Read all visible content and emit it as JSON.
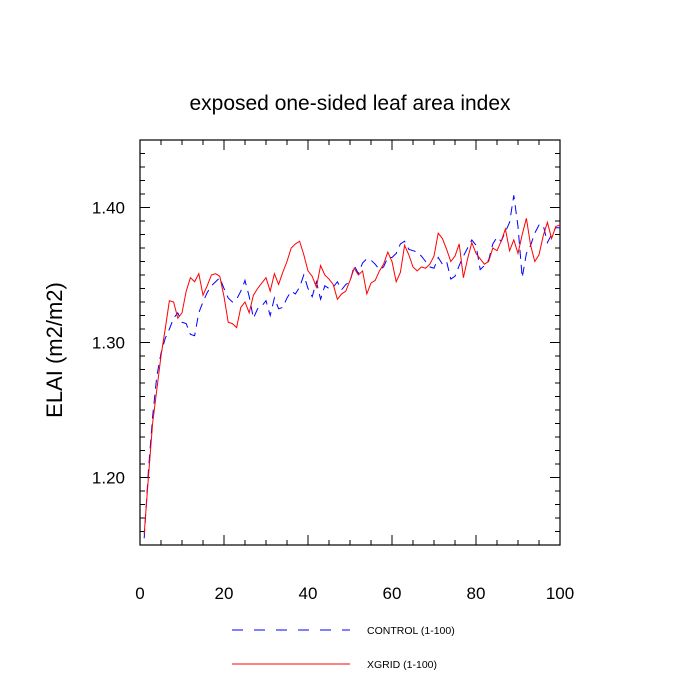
{
  "chart_data": {
    "type": "line",
    "title": "exposed one-sided leaf area index",
    "xlabel": "",
    "ylabel": "ELAI  (m2/m2)",
    "xlim": [
      0,
      100
    ],
    "ylim": [
      1.15,
      1.45
    ],
    "xticks": [
      0,
      20,
      40,
      60,
      80,
      100
    ],
    "xtick_labels": [
      "0",
      "20",
      "40",
      "60",
      "80",
      "100"
    ],
    "yticks": [
      1.2,
      1.3,
      1.4
    ],
    "ytick_labels": [
      "1.20",
      "1.30",
      "1.40"
    ],
    "x": [
      1,
      2,
      3,
      4,
      5,
      6,
      7,
      8,
      9,
      10,
      11,
      12,
      13,
      14,
      15,
      16,
      17,
      18,
      19,
      20,
      21,
      22,
      23,
      24,
      25,
      26,
      27,
      28,
      29,
      30,
      31,
      32,
      33,
      34,
      35,
      36,
      37,
      38,
      39,
      40,
      41,
      42,
      43,
      44,
      45,
      46,
      47,
      48,
      49,
      50,
      51,
      52,
      53,
      54,
      55,
      56,
      57,
      58,
      59,
      60,
      61,
      62,
      63,
      64,
      65,
      66,
      67,
      68,
      69,
      70,
      71,
      72,
      73,
      74,
      75,
      76,
      77,
      78,
      79,
      80,
      81,
      82,
      83,
      84,
      85,
      86,
      87,
      88,
      89,
      90,
      91,
      92,
      93,
      94,
      95,
      96,
      97,
      98,
      99,
      100
    ],
    "series": [
      {
        "name": "CONTROL (1-100)",
        "color": "#0000ff",
        "dash": "dashed",
        "values": [
          1.155,
          1.205,
          1.245,
          1.275,
          1.292,
          1.303,
          1.31,
          1.318,
          1.322,
          1.315,
          1.314,
          1.306,
          1.305,
          1.322,
          1.33,
          1.337,
          1.342,
          1.345,
          1.348,
          1.34,
          1.333,
          1.33,
          1.332,
          1.338,
          1.346,
          1.334,
          1.318,
          1.325,
          1.327,
          1.331,
          1.32,
          1.333,
          1.325,
          1.326,
          1.333,
          1.338,
          1.336,
          1.341,
          1.35,
          1.34,
          1.334,
          1.345,
          1.332,
          1.342,
          1.34,
          1.341,
          1.345,
          1.339,
          1.343,
          1.345,
          1.357,
          1.351,
          1.359,
          1.362,
          1.361,
          1.358,
          1.354,
          1.356,
          1.363,
          1.363,
          1.366,
          1.373,
          1.375,
          1.369,
          1.368,
          1.367,
          1.364,
          1.36,
          1.356,
          1.355,
          1.363,
          1.358,
          1.36,
          1.347,
          1.349,
          1.357,
          1.364,
          1.37,
          1.376,
          1.372,
          1.354,
          1.357,
          1.361,
          1.373,
          1.378,
          1.375,
          1.382,
          1.389,
          1.409,
          1.386,
          1.348,
          1.366,
          1.372,
          1.381,
          1.387,
          1.387,
          1.374,
          1.38,
          1.385,
          1.385
        ]
      },
      {
        "name": "XGRID (1-100)",
        "color": "#ff0000",
        "dash": "solid",
        "values": [
          1.158,
          1.2,
          1.24,
          1.265,
          1.29,
          1.31,
          1.331,
          1.33,
          1.318,
          1.322,
          1.338,
          1.348,
          1.345,
          1.351,
          1.335,
          1.342,
          1.35,
          1.351,
          1.349,
          1.334,
          1.315,
          1.314,
          1.311,
          1.326,
          1.33,
          1.322,
          1.335,
          1.34,
          1.344,
          1.348,
          1.338,
          1.351,
          1.343,
          1.352,
          1.36,
          1.37,
          1.373,
          1.375,
          1.365,
          1.353,
          1.349,
          1.341,
          1.357,
          1.35,
          1.347,
          1.343,
          1.332,
          1.336,
          1.338,
          1.346,
          1.355,
          1.35,
          1.353,
          1.336,
          1.344,
          1.346,
          1.353,
          1.358,
          1.367,
          1.36,
          1.345,
          1.352,
          1.372,
          1.365,
          1.356,
          1.353,
          1.356,
          1.355,
          1.358,
          1.364,
          1.381,
          1.377,
          1.369,
          1.36,
          1.364,
          1.373,
          1.348,
          1.362,
          1.374,
          1.366,
          1.362,
          1.358,
          1.36,
          1.37,
          1.368,
          1.375,
          1.384,
          1.368,
          1.376,
          1.366,
          1.38,
          1.392,
          1.372,
          1.36,
          1.365,
          1.379,
          1.389,
          1.377,
          1.386,
          1.387
        ]
      }
    ],
    "legend": {
      "position": "bottom-center",
      "entries": [
        "CONTROL (1-100)",
        "XGRID (1-100)"
      ]
    }
  }
}
